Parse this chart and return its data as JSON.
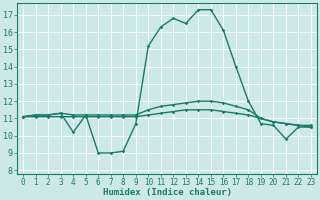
{
  "title": "",
  "xlabel": "Humidex (Indice chaleur)",
  "ylabel": "",
  "xlim": [
    -0.5,
    23.5
  ],
  "ylim": [
    7.8,
    17.7
  ],
  "yticks": [
    8,
    9,
    10,
    11,
    12,
    13,
    14,
    15,
    16,
    17
  ],
  "xticks": [
    0,
    1,
    2,
    3,
    4,
    5,
    6,
    7,
    8,
    9,
    10,
    11,
    12,
    13,
    14,
    15,
    16,
    17,
    18,
    19,
    20,
    21,
    22,
    23
  ],
  "hours": [
    0,
    1,
    2,
    3,
    4,
    5,
    6,
    7,
    8,
    9,
    10,
    11,
    12,
    13,
    14,
    15,
    16,
    17,
    18,
    19,
    20,
    21,
    22,
    23
  ],
  "line_max": [
    11.1,
    11.2,
    11.2,
    11.3,
    10.2,
    11.2,
    9.0,
    9.0,
    9.1,
    10.7,
    15.2,
    16.3,
    16.8,
    16.5,
    17.3,
    17.3,
    16.1,
    14.0,
    12.0,
    10.7,
    10.6,
    9.8,
    10.5,
    10.5
  ],
  "line_upper": [
    11.1,
    11.2,
    11.2,
    11.3,
    11.2,
    11.2,
    11.2,
    11.2,
    11.2,
    11.2,
    11.5,
    11.7,
    11.8,
    11.9,
    12.0,
    12.0,
    11.9,
    11.7,
    11.5,
    11.0,
    10.8,
    10.7,
    10.6,
    10.6
  ],
  "line_lower": [
    11.1,
    11.1,
    11.1,
    11.1,
    11.1,
    11.1,
    11.1,
    11.1,
    11.1,
    11.1,
    11.2,
    11.3,
    11.4,
    11.5,
    11.5,
    11.5,
    11.4,
    11.3,
    11.2,
    11.0,
    10.8,
    10.7,
    10.6,
    10.5
  ],
  "bg_color": "#cce8e8",
  "line_color": "#1a7a6e",
  "grid_color": "#ffffff",
  "marker": "D",
  "marker_size": 1.8,
  "linewidth": 1.0,
  "xlabel_fontsize": 6.5,
  "tick_fontsize": 5.5
}
